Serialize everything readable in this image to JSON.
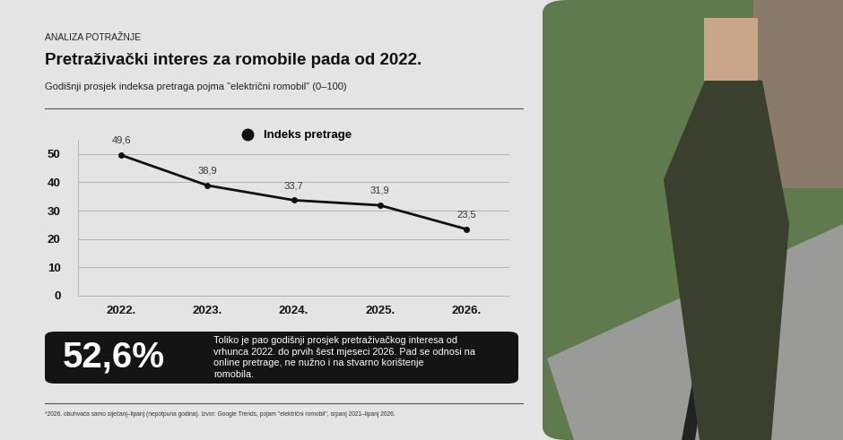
{
  "header": "ANALIZA POTRAŽNJE",
  "chart_data": {
    "type": "line",
    "title": "Pretraživački interes za romobile pada od 2022.",
    "subtitle": "Godišnji prosjek indeksa pretraga pojma \"električni romobil\" (0–100)",
    "categories": [
      "2022.",
      "2023.",
      "2024.",
      "2025.",
      "2026."
    ],
    "series": [
      {
        "name": "Indeks pretrage",
        "color": "#111111",
        "marker": "o",
        "line_style": "solid",
        "values": [
          49.6,
          38.9,
          33.7,
          31.9,
          23.5
        ],
        "value_labels": [
          "49,6",
          "38,9",
          "33,7",
          "31,9",
          "23,5"
        ]
      }
    ],
    "ylim": [
      0,
      55
    ],
    "yticks": [
      0,
      10,
      20,
      30,
      40,
      50
    ],
    "grid": true,
    "legend": "upper center",
    "data_labels": true
  },
  "callout": {
    "highlight": "52,6%",
    "text": "Toliko je pao godišnji prosjek pretraživačkog interesa od vrhunca 2022. do prvih šest mjeseci 2026. Pad se odnosi na online pretrage, ne nužno i na stvarno korištenje romobila."
  },
  "footnote": "*2026. obuhvaća samo siječanj–lipanj (nepotpuna godina). Izvor: Google Trends, pojam \"električni romobil\", srpanj 2021–lipanj 2026."
}
